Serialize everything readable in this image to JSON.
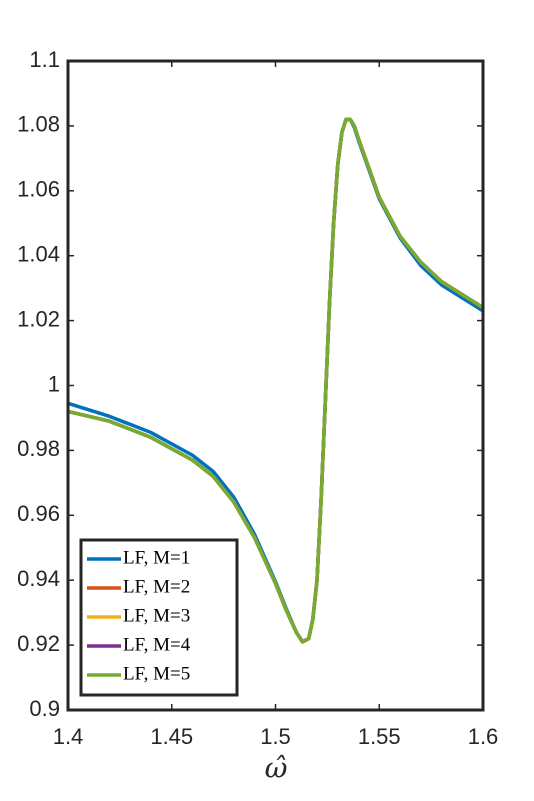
{
  "chart_data": {
    "type": "line",
    "xlabel": "ω̂",
    "x": [
      1.4,
      1.42,
      1.44,
      1.46,
      1.47,
      1.48,
      1.49,
      1.5,
      1.505,
      1.51,
      1.513,
      1.516,
      1.518,
      1.52,
      1.522,
      1.524,
      1.526,
      1.528,
      1.53,
      1.532,
      1.534,
      1.536,
      1.538,
      1.54,
      1.545,
      1.55,
      1.56,
      1.57,
      1.58,
      1.59,
      1.6
    ],
    "series": [
      {
        "name": "LF, M=1",
        "color": "#0072BD",
        "values": [
          0.9945,
          0.9905,
          0.9855,
          0.9785,
          0.9735,
          0.9655,
          0.954,
          0.9395,
          0.9315,
          0.924,
          0.921,
          0.922,
          0.928,
          0.94,
          0.965,
          0.995,
          1.025,
          1.05,
          1.068,
          1.078,
          1.082,
          1.082,
          1.0795,
          1.0755,
          1.0665,
          1.0575,
          1.0455,
          1.037,
          1.031,
          1.027,
          1.023
        ]
      },
      {
        "name": "LF, M=2",
        "color": "#D95319",
        "values": [
          0.992,
          0.989,
          0.984,
          0.977,
          0.972,
          0.964,
          0.953,
          0.939,
          0.931,
          0.924,
          0.921,
          0.922,
          0.928,
          0.94,
          0.965,
          0.995,
          1.025,
          1.05,
          1.068,
          1.078,
          1.082,
          1.082,
          1.08,
          1.076,
          1.067,
          1.058,
          1.046,
          1.038,
          1.032,
          1.028,
          1.024
        ]
      },
      {
        "name": "LF, M=3",
        "color": "#EDB120",
        "values": [
          0.992,
          0.989,
          0.984,
          0.977,
          0.972,
          0.964,
          0.953,
          0.939,
          0.931,
          0.924,
          0.921,
          0.922,
          0.928,
          0.94,
          0.965,
          0.995,
          1.025,
          1.05,
          1.068,
          1.078,
          1.082,
          1.082,
          1.08,
          1.076,
          1.067,
          1.058,
          1.046,
          1.038,
          1.032,
          1.028,
          1.024
        ]
      },
      {
        "name": "LF, M=4",
        "color": "#7E2F8E",
        "values": [
          0.992,
          0.989,
          0.984,
          0.977,
          0.972,
          0.964,
          0.953,
          0.939,
          0.931,
          0.924,
          0.921,
          0.922,
          0.928,
          0.94,
          0.965,
          0.995,
          1.025,
          1.05,
          1.068,
          1.078,
          1.082,
          1.082,
          1.08,
          1.076,
          1.067,
          1.058,
          1.046,
          1.038,
          1.032,
          1.028,
          1.024
        ]
      },
      {
        "name": "LF, M=5",
        "color": "#77AC30",
        "values": [
          0.992,
          0.989,
          0.984,
          0.977,
          0.972,
          0.964,
          0.953,
          0.939,
          0.931,
          0.924,
          0.921,
          0.922,
          0.928,
          0.94,
          0.965,
          0.995,
          1.025,
          1.05,
          1.068,
          1.078,
          1.082,
          1.082,
          1.08,
          1.076,
          1.067,
          1.058,
          1.046,
          1.038,
          1.032,
          1.028,
          1.024
        ]
      }
    ],
    "xlim": [
      1.4,
      1.6
    ],
    "xticks": [
      1.4,
      1.45,
      1.5,
      1.55,
      1.6
    ],
    "ylim": [
      0.9,
      1.1
    ],
    "yticks": [
      0.9,
      0.92,
      0.94,
      0.96,
      0.98,
      1,
      1.02,
      1.04,
      1.06,
      1.08,
      1.1
    ],
    "grid": false,
    "legend": "lower left"
  }
}
